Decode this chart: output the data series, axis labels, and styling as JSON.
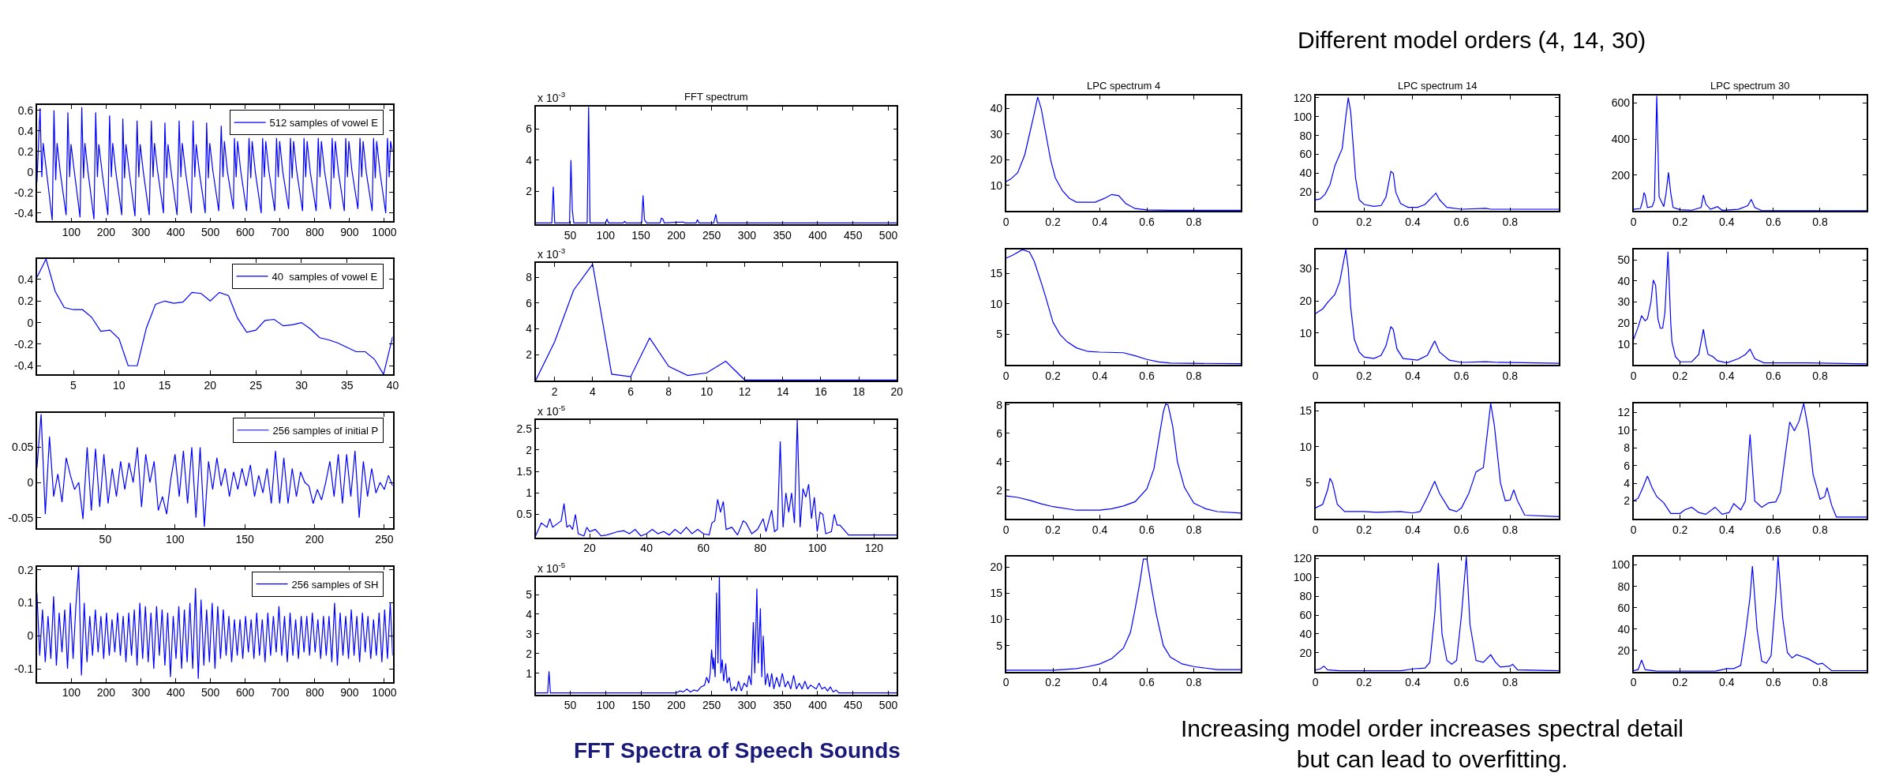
{
  "chart_data": [
    {
      "type": "line",
      "x": [
        1,
        10,
        15,
        19,
        28,
        45,
        50,
        55,
        59,
        68,
        85,
        90,
        95,
        99,
        108,
        125,
        130,
        135,
        139,
        148,
        165,
        170,
        175,
        179,
        188,
        205,
        210,
        215,
        219,
        228,
        245,
        248,
        253,
        257,
        266,
        283,
        289,
        294,
        298,
        307,
        324,
        330,
        335,
        339,
        348,
        365,
        369,
        374,
        378,
        387,
        404,
        410,
        415,
        419,
        428,
        445,
        450,
        455,
        459,
        468,
        485,
        489,
        494,
        498,
        507,
        524,
        531,
        536,
        540,
        549,
        566,
        569,
        574,
        578,
        587,
        604,
        611,
        616,
        620,
        629,
        646,
        650,
        655,
        659,
        668,
        685,
        690,
        695,
        699,
        708,
        725,
        730,
        735,
        739,
        748,
        765,
        769,
        774,
        778,
        787,
        804,
        810,
        815,
        819,
        828,
        845,
        850,
        855,
        859,
        868,
        885,
        889,
        894,
        898,
        907,
        924,
        930,
        935,
        939,
        948,
        965,
        969,
        974,
        978,
        987,
        1004,
        1009,
        1014,
        1018,
        1023
      ],
      "series": [
        {
          "name": "512 samples of vowel E",
          "color": "#0000ff",
          "values": [
            -0.1,
            0.62,
            -0.05,
            0.28,
            0.02,
            -0.47,
            0.6,
            -0.08,
            0.28,
            0.0,
            -0.42,
            0.58,
            -0.05,
            0.27,
            0.02,
            -0.44,
            0.63,
            -0.06,
            0.28,
            0.0,
            -0.46,
            0.58,
            -0.05,
            0.27,
            0.01,
            -0.42,
            0.55,
            -0.05,
            0.28,
            0.0,
            -0.42,
            0.52,
            -0.06,
            0.27,
            0.01,
            -0.43,
            0.5,
            -0.05,
            0.27,
            0.0,
            -0.42,
            0.5,
            -0.05,
            0.28,
            0.01,
            -0.4,
            0.48,
            -0.06,
            0.27,
            0.0,
            -0.42,
            0.5,
            -0.05,
            0.28,
            0.01,
            -0.4,
            0.5,
            -0.05,
            0.27,
            0.0,
            -0.4,
            0.48,
            -0.06,
            0.28,
            0.01,
            -0.38,
            0.45,
            -0.05,
            0.3,
            0.0,
            -0.36,
            0.33,
            -0.05,
            0.3,
            0.01,
            -0.38,
            0.33,
            -0.06,
            0.3,
            0.0,
            -0.4,
            0.33,
            -0.05,
            0.3,
            0.01,
            -0.38,
            0.33,
            -0.05,
            0.3,
            0.0,
            -0.36,
            0.33,
            -0.06,
            0.3,
            0.01,
            -0.38,
            0.33,
            -0.05,
            0.3,
            0.0,
            -0.38,
            0.33,
            -0.05,
            0.3,
            0.01,
            -0.36,
            0.33,
            -0.06,
            0.3,
            0.0,
            -0.38,
            0.33,
            -0.05,
            0.3,
            0.01,
            -0.36,
            0.33,
            -0.05,
            0.3,
            0.0,
            -0.38,
            0.33,
            -0.06,
            0.3,
            0.01,
            -0.4,
            0.33,
            -0.05,
            0.3,
            0.2
          ]
        }
      ],
      "xlim": [
        1,
        1024
      ],
      "xticks": [
        100,
        200,
        300,
        400,
        500,
        600,
        700,
        800,
        900,
        1000
      ],
      "ylim": [
        -0.48,
        0.65
      ],
      "yticks": [
        -0.4,
        -0.2,
        0,
        0.2,
        0.4,
        0.6
      ],
      "legend": "top right"
    },
    {
      "type": "line",
      "title": "FFT spectrum",
      "annotations": [
        "x 10$^{-3}$"
      ],
      "x": [
        1,
        24,
        26,
        28,
        49,
        51,
        53,
        55,
        74,
        76,
        78,
        100,
        102,
        104,
        125,
        127,
        129,
        151,
        153,
        155,
        158,
        177,
        179,
        181,
        183,
        205,
        210,
        212,
        228,
        230,
        232,
        253,
        256,
        258,
        512
      ],
      "series": [
        {
          "color": "#0000ff",
          "values": [
            0,
            0,
            2.3,
            0,
            0,
            4.0,
            0.8,
            0,
            0,
            7.4,
            0,
            0,
            0.25,
            0,
            0,
            0.1,
            0,
            0,
            1.75,
            0.2,
            0,
            0,
            0.3,
            0.25,
            0,
            0.05,
            0.05,
            0,
            0,
            0.2,
            0,
            0,
            0.55,
            0,
            0
          ]
        }
      ],
      "xlim": [
        1,
        512
      ],
      "xticks": [
        50,
        100,
        150,
        200,
        250,
        300,
        350,
        400,
        450,
        500
      ],
      "ylim": [
        -0.1,
        7.4
      ],
      "yticks": [
        2,
        4,
        6
      ]
    },
    {
      "type": "line",
      "title": "LPC spectrum 4",
      "x": [
        0,
        0.02,
        0.05,
        0.08,
        0.1,
        0.12,
        0.135,
        0.15,
        0.17,
        0.19,
        0.21,
        0.24,
        0.27,
        0.3,
        0.33,
        0.38,
        0.42,
        0.45,
        0.48,
        0.51,
        0.55,
        0.6,
        0.7,
        0.8,
        1.0
      ],
      "series": [
        {
          "color": "#0000ff",
          "values": [
            11.5,
            12.5,
            15,
            22,
            30,
            38,
            44.5,
            40,
            30,
            20,
            13,
            8,
            5,
            3.5,
            3.5,
            3.5,
            5,
            6.5,
            6,
            3,
            1,
            0.5,
            0.3,
            0.3,
            0.3
          ]
        }
      ],
      "xlim": [
        0,
        1
      ],
      "xticks": [
        0,
        0.2,
        0.4,
        0.6,
        0.8
      ],
      "ylim": [
        0,
        45
      ],
      "yticks": [
        10,
        20,
        30,
        40
      ]
    },
    {
      "type": "line",
      "title": "LPC spectrum 14",
      "annotations": [
        "Different model orders (4, 14, 30)"
      ],
      "x": [
        0,
        0.02,
        0.04,
        0.06,
        0.08,
        0.1,
        0.11,
        0.125,
        0.135,
        0.145,
        0.155,
        0.165,
        0.18,
        0.2,
        0.24,
        0.27,
        0.29,
        0.31,
        0.32,
        0.33,
        0.35,
        0.38,
        0.42,
        0.45,
        0.48,
        0.495,
        0.51,
        0.54,
        0.6,
        0.7,
        0.72,
        1.0
      ],
      "series": [
        {
          "color": "#0000ff",
          "values": [
            12,
            13,
            18,
            28,
            48,
            60,
            66,
            100,
            120,
            105,
            70,
            35,
            12,
            7,
            5,
            6,
            15,
            42,
            40,
            20,
            8,
            4,
            4,
            7,
            15,
            19,
            12,
            4,
            2,
            3,
            2,
            2
          ]
        }
      ],
      "xlim": [
        0,
        1
      ],
      "xticks": [
        0,
        0.2,
        0.4,
        0.6,
        0.8
      ],
      "ylim": [
        0,
        122
      ],
      "yticks": [
        20,
        40,
        60,
        80,
        100,
        120
      ]
    },
    {
      "type": "line",
      "title": "LPC spectrum 30",
      "x": [
        0,
        0.03,
        0.04,
        0.045,
        0.05,
        0.06,
        0.08,
        0.09,
        0.1,
        0.11,
        0.13,
        0.14,
        0.15,
        0.16,
        0.17,
        0.2,
        0.25,
        0.29,
        0.3,
        0.31,
        0.33,
        0.35,
        0.36,
        0.38,
        0.45,
        0.49,
        0.505,
        0.52,
        0.55,
        0.7,
        0.9,
        1.0
      ],
      "series": [
        {
          "color": "#0000ff",
          "values": [
            10,
            15,
            60,
            103,
            90,
            20,
            25,
            60,
            640,
            80,
            25,
            100,
            215,
            100,
            20,
            8,
            5,
            20,
            90,
            40,
            10,
            20,
            25,
            5,
            10,
            30,
            65,
            20,
            3,
            2,
            2,
            2
          ]
        }
      ],
      "xlim": [
        0,
        1
      ],
      "xticks": [
        0,
        0.2,
        0.4,
        0.6,
        0.8
      ],
      "ylim": [
        0,
        640
      ],
      "yticks": [
        200,
        400,
        600
      ]
    },
    {
      "type": "line",
      "x": [
        1,
        2,
        3,
        4,
        5,
        6,
        7,
        8,
        9,
        10,
        11,
        12,
        13,
        14,
        15,
        16,
        17,
        18,
        19,
        20,
        21,
        22,
        23,
        24,
        25,
        26,
        27,
        28,
        29,
        30,
        31,
        32,
        33,
        34,
        35,
        36,
        37,
        38,
        39,
        40
      ],
      "series": [
        {
          "name": "40  samples of vowel E",
          "color": "#0000ff",
          "values": [
            0.42,
            0.59,
            0.29,
            0.14,
            0.12,
            0.12,
            0.05,
            -0.08,
            -0.07,
            -0.15,
            -0.4,
            -0.4,
            -0.05,
            0.17,
            0.2,
            0.18,
            0.19,
            0.28,
            0.27,
            0.2,
            0.28,
            0.25,
            0.04,
            -0.09,
            -0.07,
            0.02,
            0.03,
            -0.03,
            -0.02,
            0.0,
            -0.06,
            -0.14,
            -0.16,
            -0.19,
            -0.23,
            -0.27,
            -0.27,
            -0.34,
            -0.48,
            -0.13
          ]
        }
      ],
      "xlim": [
        1,
        40
      ],
      "xticks": [
        5,
        10,
        15,
        20,
        25,
        30,
        35,
        40
      ],
      "ylim": [
        -0.48,
        0.59
      ],
      "yticks": [
        -0.4,
        -0.2,
        0,
        0.2,
        0.4
      ],
      "legend": "top right"
    },
    {
      "type": "line",
      "annotations": [
        "x 10$^{-3}$"
      ],
      "x": [
        1,
        2,
        3,
        4,
        5,
        6,
        7,
        8,
        9,
        10,
        11,
        12,
        13,
        14,
        15,
        16,
        17,
        18,
        19,
        20
      ],
      "series": [
        {
          "color": "#0000ff",
          "values": [
            0,
            3,
            7,
            9,
            0.5,
            0.3,
            3.3,
            1.1,
            0.4,
            0.6,
            1.5,
            0.05,
            0.05,
            0.05,
            0.05,
            0.05,
            0.05,
            0.05,
            0.05,
            0.05
          ]
        }
      ],
      "xlim": [
        1,
        20
      ],
      "xticks": [
        2,
        4,
        6,
        8,
        10,
        12,
        14,
        16,
        18,
        20
      ],
      "ylim": [
        0,
        9.1
      ],
      "yticks": [
        2,
        4,
        6,
        8
      ]
    },
    {
      "type": "line",
      "x": [
        0,
        0.03,
        0.07,
        0.1,
        0.12,
        0.15,
        0.17,
        0.2,
        0.23,
        0.26,
        0.3,
        0.35,
        0.4,
        0.5,
        0.55,
        0.6,
        0.65,
        0.7,
        1.0
      ],
      "series": [
        {
          "color": "#0000ff",
          "values": [
            17.5,
            18,
            18.9,
            18.5,
            17,
            13.5,
            11,
            7,
            5,
            3.8,
            2.8,
            2.2,
            2.1,
            2,
            1.5,
            0.9,
            0.5,
            0.3,
            0.2
          ]
        }
      ],
      "xlim": [
        0,
        1
      ],
      "xticks": [
        0,
        0.2,
        0.4,
        0.6,
        0.8
      ],
      "ylim": [
        0,
        18.9
      ],
      "yticks": [
        5,
        10,
        15
      ]
    },
    {
      "type": "line",
      "x": [
        0,
        0.03,
        0.05,
        0.08,
        0.1,
        0.11,
        0.125,
        0.135,
        0.145,
        0.16,
        0.18,
        0.2,
        0.24,
        0.27,
        0.29,
        0.31,
        0.32,
        0.335,
        0.36,
        0.42,
        0.46,
        0.48,
        0.49,
        0.51,
        0.55,
        0.6,
        0.7,
        0.75,
        1.0
      ],
      "series": [
        {
          "color": "#0000ff",
          "values": [
            16,
            17.5,
            19.5,
            22,
            26,
            30,
            36,
            30,
            18,
            8,
            4,
            2.5,
            2,
            3,
            6,
            12,
            11,
            5,
            2,
            1.5,
            3,
            6,
            7.5,
            4,
            1.5,
            0.8,
            1,
            0.8,
            0.5
          ]
        }
      ],
      "xlim": [
        0,
        1
      ],
      "xticks": [
        0,
        0.2,
        0.4,
        0.6,
        0.8
      ],
      "ylim": [
        0,
        36
      ],
      "yticks": [
        10,
        20,
        30
      ]
    },
    {
      "type": "line",
      "x": [
        0,
        0.02,
        0.035,
        0.05,
        0.06,
        0.075,
        0.085,
        0.095,
        0.105,
        0.115,
        0.125,
        0.135,
        0.148,
        0.16,
        0.165,
        0.18,
        0.2,
        0.25,
        0.28,
        0.3,
        0.31,
        0.32,
        0.34,
        0.36,
        0.4,
        0.45,
        0.48,
        0.5,
        0.52,
        0.56,
        0.7,
        0.75,
        1.0
      ],
      "series": [
        {
          "color": "#0000ff",
          "values": [
            12,
            18,
            23.5,
            21,
            22,
            30,
            40.5,
            38,
            22,
            17.5,
            17.5,
            25,
            54,
            20,
            11,
            4,
            1.5,
            1.5,
            5,
            17,
            10,
            5,
            4,
            2,
            1,
            3,
            5,
            7.5,
            3,
            1,
            1,
            1,
            0.5
          ]
        }
      ],
      "xlim": [
        0,
        1
      ],
      "xticks": [
        0,
        0.2,
        0.4,
        0.6,
        0.8
      ],
      "ylim": [
        0,
        55
      ],
      "yticks": [
        10,
        20,
        30,
        40,
        50
      ]
    },
    {
      "type": "line",
      "x": [
        1,
        4,
        7,
        10,
        13,
        16,
        19,
        22,
        25,
        28,
        31,
        34,
        37,
        40,
        43,
        46,
        49,
        52,
        55,
        58,
        61,
        64,
        67,
        70,
        73,
        76,
        79,
        82,
        85,
        88,
        91,
        94,
        97,
        100,
        103,
        106,
        109,
        112,
        115,
        118,
        121,
        124,
        127,
        130,
        133,
        136,
        139,
        142,
        145,
        148,
        151,
        154,
        157,
        160,
        163,
        166,
        169,
        172,
        175,
        178,
        181,
        184,
        187,
        190,
        193,
        196,
        199,
        202,
        205,
        208,
        211,
        214,
        217,
        220,
        223,
        226,
        229,
        232,
        235,
        238,
        241,
        244,
        247,
        250,
        253,
        256
      ],
      "series": [
        {
          "name": "256 samples of initial P",
          "color": "#0000ff",
          "values": [
            0.02,
            0.097,
            -0.045,
            0.065,
            -0.02,
            0.012,
            -0.028,
            0.035,
            0.01,
            -0.01,
            0.0,
            -0.052,
            0.05,
            -0.04,
            0.048,
            -0.035,
            0.04,
            -0.03,
            0.02,
            -0.02,
            0.03,
            -0.01,
            0.028,
            0.0,
            0.05,
            -0.035,
            0.04,
            0.0,
            0.03,
            -0.04,
            -0.02,
            -0.045,
            0.005,
            0.04,
            -0.02,
            0.045,
            -0.03,
            0.05,
            -0.05,
            0.05,
            -0.063,
            0.03,
            -0.01,
            0.035,
            -0.005,
            0.02,
            -0.02,
            0.015,
            -0.01,
            0.02,
            -0.005,
            0.025,
            -0.02,
            0.01,
            -0.015,
            0.02,
            -0.03,
            0.045,
            -0.03,
            0.035,
            -0.03,
            0.02,
            -0.02,
            0.015,
            0.0,
            -0.005,
            -0.03,
            -0.01,
            -0.025,
            0.0,
            0.03,
            -0.02,
            0.04,
            -0.03,
            0.04,
            -0.02,
            0.045,
            -0.05,
            0.03,
            -0.02,
            0.02,
            -0.015,
            0.0,
            -0.01,
            0.01,
            -0.005
          ]
        }
      ],
      "xlim": [
        1,
        256
      ],
      "xticks": [
        50,
        100,
        150,
        200,
        250
      ],
      "ylim": [
        -0.065,
        0.099
      ],
      "yticks": [
        -0.05,
        0,
        0.05
      ],
      "legend": "top right"
    },
    {
      "type": "line",
      "annotations": [
        "x 10$^{-5}$"
      ],
      "x": [
        1,
        3,
        5,
        6,
        7,
        9,
        10,
        11,
        12,
        13,
        14,
        15,
        16,
        18,
        19,
        20,
        22,
        24,
        26,
        30,
        32,
        34,
        36,
        38,
        40,
        42,
        44,
        46,
        48,
        50,
        52,
        54,
        56,
        58,
        60,
        62,
        63,
        64,
        65,
        66,
        67,
        68,
        70,
        72,
        74,
        75,
        77,
        79,
        81,
        82,
        83,
        84,
        85,
        86,
        87,
        88,
        89,
        90,
        91,
        92,
        93,
        94,
        95,
        96,
        97,
        98,
        99,
        100,
        101,
        102,
        103,
        105,
        106,
        107,
        108,
        110,
        111,
        128
      ],
      "series": [
        {
          "color": "#0000ff",
          "values": [
            0,
            0.3,
            0.2,
            0.4,
            0.2,
            0.3,
            0.35,
            0.75,
            0.2,
            0.25,
            0.15,
            0.5,
            0.05,
            0,
            0.2,
            0.1,
            0.15,
            0,
            0.02,
            0.1,
            0.12,
            0.05,
            0.15,
            0,
            0.05,
            0.15,
            0.05,
            0.1,
            0.02,
            0.15,
            0.05,
            0.2,
            0.05,
            0.15,
            0.05,
            0.02,
            0.3,
            0.35,
            0.85,
            0.55,
            0.8,
            0.15,
            0.2,
            0.02,
            0.35,
            0.3,
            0.05,
            0.15,
            0.4,
            0.1,
            0.35,
            0.6,
            0.1,
            0.15,
            2.2,
            0.2,
            1.0,
            0.55,
            1.0,
            0.3,
            2.7,
            0.2,
            1.1,
            0.9,
            1.2,
            0.4,
            0.9,
            0.1,
            0.55,
            0.5,
            0.05,
            0.1,
            0.5,
            0.25,
            0.25,
            0.1,
            0.02,
            0.02
          ]
        }
      ],
      "xlim": [
        1,
        128
      ],
      "xticks": [
        20,
        40,
        60,
        80,
        100,
        120
      ],
      "ylim": [
        -0.04,
        2.7
      ],
      "yticks": [
        0.5,
        1,
        1.5,
        2,
        2.5
      ]
    },
    {
      "type": "line",
      "x": [
        0,
        0.05,
        0.1,
        0.15,
        0.2,
        0.3,
        0.4,
        0.45,
        0.5,
        0.55,
        0.6,
        0.63,
        0.65,
        0.67,
        0.68,
        0.69,
        0.71,
        0.73,
        0.76,
        0.8,
        0.85,
        0.9,
        1.0
      ],
      "series": [
        {
          "color": "#0000ff",
          "values": [
            1.6,
            1.5,
            1.3,
            1.05,
            0.85,
            0.6,
            0.6,
            0.7,
            0.9,
            1.2,
            2.1,
            3.5,
            5.5,
            7.5,
            8.05,
            8,
            6.5,
            4,
            2.2,
            1.1,
            0.7,
            0.5,
            0.4
          ]
        }
      ],
      "xlim": [
        0,
        1
      ],
      "xticks": [
        0,
        0.2,
        0.4,
        0.6,
        0.8
      ],
      "ylim": [
        0,
        8.1
      ],
      "yticks": [
        2,
        4,
        6,
        8
      ]
    },
    {
      "type": "line",
      "x": [
        0,
        0.03,
        0.05,
        0.06,
        0.07,
        0.09,
        0.12,
        0.2,
        0.25,
        0.35,
        0.4,
        0.43,
        0.46,
        0.49,
        0.51,
        0.55,
        0.58,
        0.6,
        0.63,
        0.66,
        0.69,
        0.71,
        0.72,
        0.735,
        0.76,
        0.78,
        0.8,
        0.815,
        0.83,
        0.86,
        1.0
      ],
      "series": [
        {
          "color": "#0000ff",
          "values": [
            1.5,
            2,
            4,
            5.6,
            5,
            2,
            1,
            1,
            0.9,
            1,
            0.8,
            1,
            3,
            5.2,
            3.5,
            1.3,
            1,
            1.5,
            3.5,
            6.5,
            7.1,
            13,
            16,
            13,
            5,
            2.5,
            2.6,
            4,
            2.5,
            0.5,
            0.3
          ]
        }
      ],
      "xlim": [
        0,
        1
      ],
      "xticks": [
        0,
        0.2,
        0.4,
        0.6,
        0.8
      ],
      "ylim": [
        0,
        16
      ],
      "yticks": [
        5,
        10,
        15
      ]
    },
    {
      "type": "line",
      "x": [
        0,
        0.02,
        0.04,
        0.06,
        0.08,
        0.1,
        0.13,
        0.16,
        0.2,
        0.22,
        0.25,
        0.28,
        0.31,
        0.35,
        0.38,
        0.41,
        0.43,
        0.46,
        0.48,
        0.5,
        0.52,
        0.55,
        0.58,
        0.61,
        0.63,
        0.65,
        0.67,
        0.69,
        0.71,
        0.73,
        0.75,
        0.77,
        0.8,
        0.82,
        0.83,
        0.85,
        0.87,
        1.0
      ],
      "series": [
        {
          "color": "#0000ff",
          "values": [
            2,
            2.3,
            3.5,
            4.8,
            3.5,
            2.5,
            1.8,
            0.6,
            0.6,
            1,
            1.3,
            0.7,
            0.5,
            1.3,
            0.5,
            0.7,
            1.7,
            1,
            2,
            9.5,
            2,
            1.3,
            1.8,
            1.9,
            3,
            7,
            10.9,
            9.9,
            11,
            13,
            10,
            5,
            2.2,
            2.5,
            3.5,
            1.5,
            0.2,
            0.2
          ]
        }
      ],
      "xlim": [
        0,
        1
      ],
      "xticks": [
        0,
        0.2,
        0.4,
        0.6,
        0.8
      ],
      "ylim": [
        0,
        13
      ],
      "yticks": [
        2,
        4,
        6,
        8,
        10,
        12
      ]
    },
    {
      "type": "line",
      "x": [
        1,
        9,
        17,
        25,
        33,
        41,
        49,
        57,
        65,
        73,
        81,
        89,
        97,
        105,
        113,
        121,
        129,
        137,
        145,
        153,
        161,
        169,
        177,
        185,
        193,
        201,
        209,
        217,
        225,
        233,
        241,
        249,
        257,
        265,
        273,
        281,
        289,
        297,
        305,
        313,
        321,
        329,
        337,
        345,
        353,
        361,
        369,
        377,
        385,
        393,
        401,
        409,
        417,
        425,
        433,
        441,
        449,
        457,
        465,
        473,
        481,
        489,
        497,
        505,
        513,
        521,
        529,
        537,
        545,
        553,
        561,
        569,
        577,
        585,
        593,
        601,
        609,
        617,
        625,
        633,
        641,
        649,
        657,
        665,
        673,
        681,
        689,
        697,
        705,
        713,
        721,
        729,
        737,
        745,
        753,
        761,
        769,
        777,
        785,
        793,
        801,
        809,
        817,
        825,
        833,
        841,
        849,
        857,
        865,
        873,
        881,
        889,
        897,
        905,
        913,
        921,
        929,
        937,
        945,
        953,
        961,
        969,
        977,
        985,
        993,
        1001,
        1009,
        1017,
        1024
      ],
      "series": [
        {
          "name": "256 samples of SH",
          "color": "#0000ff",
          "values": [
            0.13,
            -0.06,
            0.08,
            -0.08,
            0.06,
            -0.07,
            0.12,
            -0.09,
            0.07,
            -0.05,
            0.08,
            -0.1,
            0.1,
            -0.07,
            0.09,
            0.21,
            -0.12,
            0.1,
            -0.08,
            0.06,
            -0.06,
            0.08,
            -0.05,
            0.06,
            -0.07,
            0.07,
            -0.06,
            0.05,
            -0.05,
            0.07,
            -0.06,
            0.06,
            -0.08,
            0.07,
            -0.06,
            0.08,
            -0.09,
            0.1,
            -0.07,
            0.09,
            -0.08,
            0.07,
            -0.1,
            0.09,
            -0.06,
            0.08,
            -0.09,
            0.07,
            -0.125,
            0.06,
            -0.07,
            0.09,
            -0.1,
            0.08,
            -0.08,
            0.1,
            -0.1,
            0.145,
            -0.13,
            0.11,
            -0.09,
            0.08,
            -0.08,
            0.1,
            -0.1,
            0.09,
            -0.07,
            0.08,
            -0.06,
            0.06,
            -0.08,
            0.05,
            -0.06,
            0.05,
            -0.07,
            0.06,
            -0.05,
            0.05,
            -0.07,
            0.07,
            -0.06,
            0.05,
            -0.08,
            0.07,
            -0.06,
            0.06,
            -0.05,
            0.09,
            -0.06,
            0.06,
            -0.08,
            0.07,
            -0.06,
            0.05,
            -0.07,
            0.06,
            -0.05,
            0.06,
            -0.06,
            0.07,
            -0.05,
            0.05,
            -0.07,
            0.06,
            -0.06,
            0.06,
            -0.08,
            0.1,
            -0.09,
            0.07,
            -0.06,
            0.06,
            -0.07,
            0.08,
            -0.06,
            0.06,
            -0.08,
            0.07,
            -0.05,
            0.06,
            -0.07,
            0.05,
            -0.06,
            0.07,
            -0.08,
            0.08,
            -0.07,
            0.1,
            -0.06
          ]
        }
      ],
      "xlim": [
        1,
        1024
      ],
      "xticks": [
        100,
        200,
        300,
        400,
        500,
        600,
        700,
        800,
        900,
        1000
      ],
      "ylim": [
        -0.14,
        0.21
      ],
      "yticks": [
        -0.1,
        0,
        0.1,
        0.2
      ],
      "legend": "top right"
    },
    {
      "type": "line",
      "annotations": [
        "x 10$^{-5}$",
        "FFT Spectra of Speech Sounds"
      ],
      "x": [
        1,
        18,
        20,
        22,
        200,
        205,
        210,
        215,
        220,
        225,
        230,
        235,
        240,
        243,
        246,
        248,
        250,
        252,
        253,
        255,
        257,
        259,
        261,
        263,
        265,
        267,
        270,
        272,
        275,
        278,
        282,
        285,
        288,
        292,
        296,
        300,
        303,
        306,
        309,
        311,
        314,
        316,
        319,
        321,
        323,
        326,
        329,
        332,
        335,
        338,
        342,
        346,
        350,
        354,
        358,
        362,
        366,
        370,
        374,
        378,
        382,
        386,
        390,
        394,
        398,
        402,
        406,
        410,
        414,
        418,
        422,
        426,
        430,
        512
      ],
      "series": [
        {
          "color": "#0000ff",
          "values": [
            0,
            0,
            1.1,
            0,
            0,
            0.1,
            0.05,
            0.2,
            0.05,
            0.15,
            0.1,
            0.3,
            0.4,
            0.8,
            0.5,
            1.0,
            2.2,
            1.2,
            1.8,
            0.8,
            5.1,
            1.5,
            5.9,
            1.0,
            1.7,
            0.6,
            1.5,
            0.5,
            0.8,
            0.1,
            0.3,
            0.1,
            0.6,
            0.1,
            0.5,
            0.3,
            0.9,
            0.4,
            3.6,
            1.0,
            5.3,
            1.5,
            4.3,
            0.8,
            2.9,
            0.4,
            1.0,
            0.3,
            1.0,
            0.2,
            0.8,
            0.3,
            1.0,
            0.3,
            0.6,
            0.2,
            0.9,
            0.2,
            0.5,
            0.2,
            0.6,
            0.2,
            0.4,
            0.3,
            0.2,
            0.5,
            0.2,
            0.3,
            0.1,
            0.3,
            0.05,
            0.15,
            0,
            0
          ]
        }
      ],
      "xlim": [
        1,
        512
      ],
      "xticks": [
        50,
        100,
        150,
        200,
        250,
        300,
        350,
        400,
        450,
        500
      ],
      "ylim": [
        -0.08,
        5.9
      ],
      "yticks": [
        1,
        2,
        3,
        4,
        5
      ]
    },
    {
      "type": "line",
      "x": [
        0,
        0.2,
        0.3,
        0.35,
        0.4,
        0.45,
        0.5,
        0.53,
        0.55,
        0.57,
        0.585,
        0.6,
        0.62,
        0.64,
        0.67,
        0.7,
        0.75,
        0.8,
        0.9,
        1.0
      ],
      "series": [
        {
          "color": "#0000ff",
          "values": [
            0.3,
            0.3,
            0.6,
            1,
            1.5,
            2.5,
            4.5,
            7.5,
            12,
            17,
            21.5,
            21.5,
            16,
            11,
            5,
            2.8,
            1.5,
            1,
            0.4,
            0.4
          ]
        }
      ],
      "xlim": [
        0,
        1
      ],
      "xticks": [
        0,
        0.2,
        0.4,
        0.6,
        0.8
      ],
      "ylim": [
        0,
        22
      ],
      "yticks": [
        5,
        10,
        15,
        20
      ]
    },
    {
      "type": "line",
      "annotations": [
        "Increasing model order increases spectral detail\nbut can lead to overfitting."
      ],
      "x": [
        0,
        0.02,
        0.035,
        0.05,
        0.1,
        0.3,
        0.35,
        0.4,
        0.45,
        0.47,
        0.49,
        0.505,
        0.52,
        0.54,
        0.56,
        0.58,
        0.6,
        0.62,
        0.635,
        0.66,
        0.69,
        0.72,
        0.74,
        0.76,
        0.8,
        0.81,
        0.83,
        1.0
      ],
      "series": [
        {
          "color": "#0000ff",
          "values": [
            2,
            3,
            6,
            2,
            1,
            1,
            1,
            3,
            4,
            10,
            60,
            115,
            40,
            12,
            8,
            12,
            60,
            122,
            50,
            12,
            10,
            18,
            10,
            5,
            6,
            8,
            2,
            1
          ]
        }
      ],
      "xlim": [
        0,
        1
      ],
      "xticks": [
        0,
        0.2,
        0.4,
        0.6,
        0.8
      ],
      "ylim": [
        0,
        122
      ],
      "yticks": [
        20,
        40,
        60,
        80,
        100,
        120
      ]
    },
    {
      "type": "line",
      "x": [
        0,
        0.02,
        0.035,
        0.05,
        0.1,
        0.35,
        0.4,
        0.43,
        0.46,
        0.48,
        0.5,
        0.51,
        0.53,
        0.55,
        0.57,
        0.59,
        0.61,
        0.62,
        0.64,
        0.66,
        0.68,
        0.7,
        0.75,
        0.79,
        0.81,
        0.85,
        1.0
      ],
      "series": [
        {
          "color": "#0000ff",
          "values": [
            1,
            2,
            11,
            2,
            0.5,
            0.5,
            3,
            3,
            6,
            35,
            70,
            99,
            40,
            10,
            8,
            15,
            70,
            108,
            50,
            18,
            13,
            16,
            12,
            7,
            8,
            1,
            1
          ]
        }
      ],
      "xlim": [
        0,
        1
      ],
      "xticks": [
        0,
        0.2,
        0.4,
        0.6,
        0.8
      ],
      "ylim": [
        0,
        108
      ],
      "yticks": [
        20,
        40,
        60,
        80,
        100
      ]
    }
  ]
}
